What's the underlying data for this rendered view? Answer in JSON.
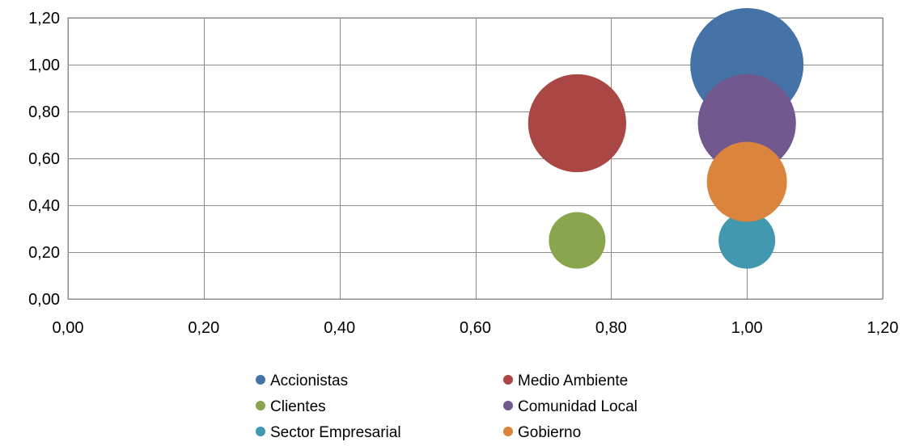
{
  "chart_data": {
    "type": "bubble",
    "title": "",
    "xlabel": "",
    "ylabel": "",
    "xlim": [
      0,
      1.2
    ],
    "ylim": [
      0,
      1.2
    ],
    "x_ticks": [
      "0,00",
      "0,20",
      "0,40",
      "0,60",
      "0,80",
      "1,00",
      "1,20"
    ],
    "y_ticks": [
      "0,00",
      "0,20",
      "0,40",
      "0,60",
      "0,80",
      "1,00",
      "1,20"
    ],
    "grid": true,
    "legend_position": "bottom",
    "series": [
      {
        "name": "Accionistas",
        "x": 1.0,
        "y": 1.0,
        "size": 1.0,
        "color": "#4572A7"
      },
      {
        "name": "Medio Ambiente",
        "x": 0.75,
        "y": 0.75,
        "size": 0.75,
        "color": "#AA4643"
      },
      {
        "name": "Clientes",
        "x": 0.75,
        "y": 0.25,
        "size": 0.25,
        "color": "#89A54E"
      },
      {
        "name": "Comunidad Local",
        "x": 1.0,
        "y": 0.75,
        "size": 0.75,
        "color": "#71588F"
      },
      {
        "name": "Sector Empresarial",
        "x": 1.0,
        "y": 0.25,
        "size": 0.25,
        "color": "#4198AF"
      },
      {
        "name": "Gobierno",
        "x": 1.0,
        "y": 0.5,
        "size": 0.5,
        "color": "#DB843D"
      }
    ]
  }
}
